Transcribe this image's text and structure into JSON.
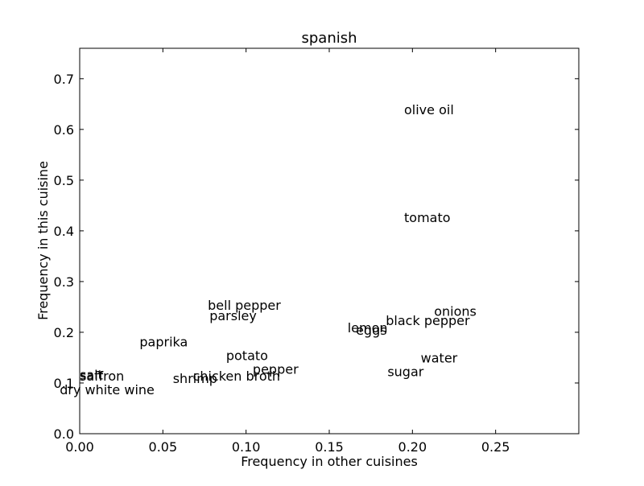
{
  "chart_data": {
    "type": "scatter",
    "title": "spanish",
    "xlabel": "Frequency in other cuisines",
    "ylabel": "Frequency in this cuisine",
    "xlim": [
      0.0,
      0.3
    ],
    "ylim": [
      0.0,
      0.76
    ],
    "grid": false,
    "xticks": [
      "0.00",
      "0.05",
      "0.10",
      "0.15",
      "0.20",
      "0.25"
    ],
    "yticks": [
      "0.0",
      "0.1",
      "0.2",
      "0.3",
      "0.4",
      "0.5",
      "0.6",
      "0.7"
    ],
    "points": [
      {
        "label": "olive oil",
        "x": 0.195,
        "y": 0.638
      },
      {
        "label": "tomato",
        "x": 0.195,
        "y": 0.425
      },
      {
        "label": "bell pepper",
        "x": 0.077,
        "y": 0.252
      },
      {
        "label": "parsley",
        "x": 0.078,
        "y": 0.232
      },
      {
        "label": "onions",
        "x": 0.213,
        "y": 0.24
      },
      {
        "label": "black pepper",
        "x": 0.184,
        "y": 0.222
      },
      {
        "label": "lemon",
        "x": 0.161,
        "y": 0.208
      },
      {
        "label": "eggs",
        "x": 0.166,
        "y": 0.203
      },
      {
        "label": "paprika",
        "x": 0.036,
        "y": 0.18
      },
      {
        "label": "potato",
        "x": 0.088,
        "y": 0.153
      },
      {
        "label": "water",
        "x": 0.205,
        "y": 0.148
      },
      {
        "label": "pepper",
        "x": 0.104,
        "y": 0.126
      },
      {
        "label": "sugar",
        "x": 0.185,
        "y": 0.121
      },
      {
        "label": "saffron",
        "x": 0.0,
        "y": 0.113
      },
      {
        "label": "salt",
        "x": 0.0,
        "y": 0.115
      },
      {
        "label": "chicken broth",
        "x": 0.068,
        "y": 0.113
      },
      {
        "label": "shrimp",
        "x": 0.056,
        "y": 0.108
      },
      {
        "label": "dry white wine",
        "x": -0.012,
        "y": 0.086
      }
    ]
  }
}
